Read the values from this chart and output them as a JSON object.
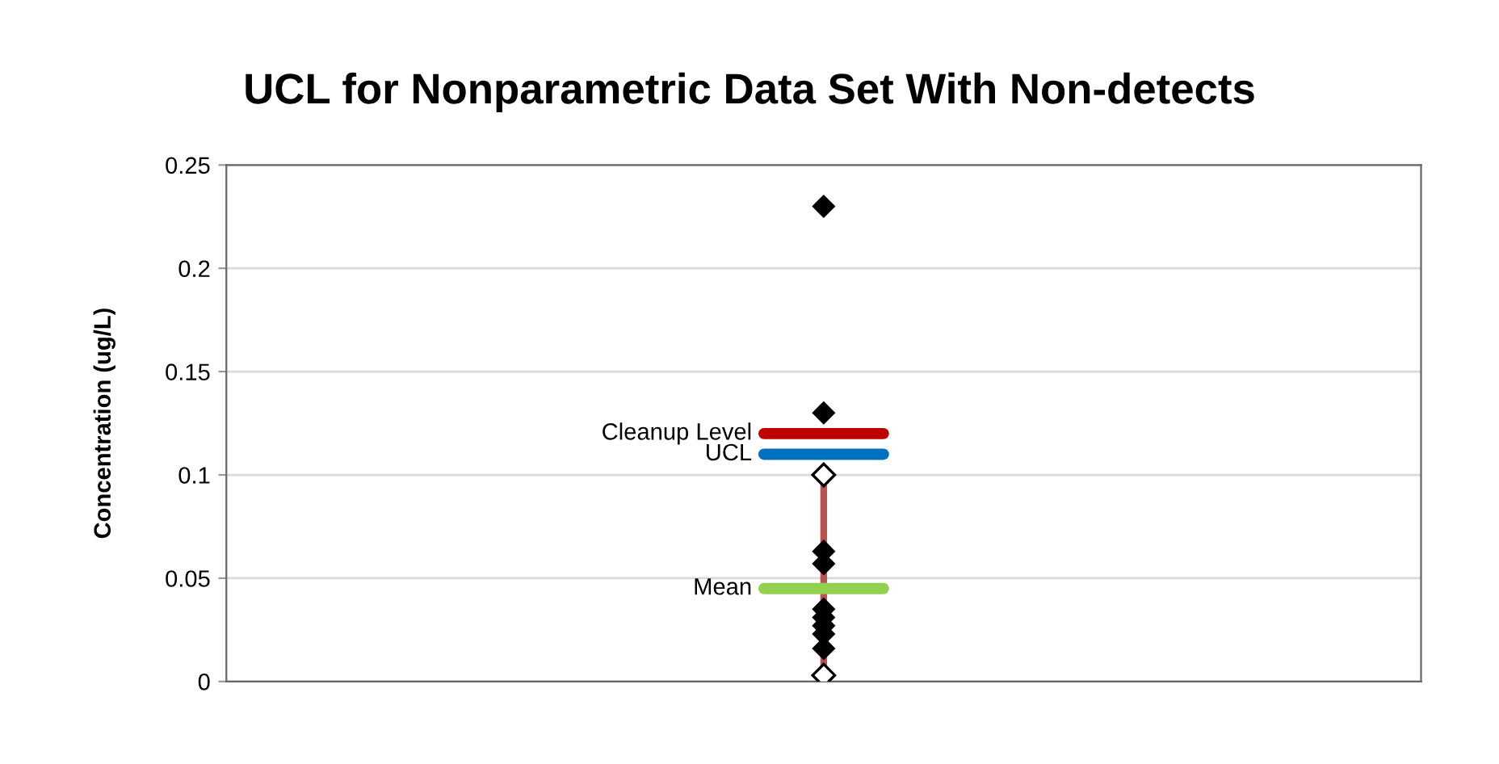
{
  "chart_data": {
    "type": "scatter",
    "title": "UCL for Nonparametric Data Set With Non-detects",
    "ylabel": "Concentration (ug/L)",
    "categories": [
      null
    ],
    "series": [
      {
        "type": "line",
        "color": "#b85450",
        "marker": "diamond",
        "x": [
          null,
          null
        ],
        "values": [
          0.003,
          0.1
        ]
      },
      {
        "color": "#000000",
        "marker": "diamond",
        "x": [
          null,
          null,
          null,
          null,
          null,
          null,
          null,
          null,
          null
        ],
        "values": [
          0.23,
          0.13,
          0.063,
          0.057,
          0.035,
          0.031,
          0.027,
          0.023,
          0.016
        ]
      }
    ],
    "ref_lines": [
      {
        "axis": "y",
        "value": 0.12,
        "label": "Cleanup Level",
        "color": "#c00000"
      },
      {
        "axis": "y",
        "value": 0.11,
        "label": "UCL",
        "color": "#0070c0"
      },
      {
        "axis": "y",
        "value": 0.045,
        "label": "Mean",
        "color": "#92d050"
      }
    ],
    "ylim": [
      0,
      0.25
    ],
    "yticks": [
      0,
      0.05,
      0.1,
      0.15,
      0.2,
      0.25
    ],
    "grid": "y",
    "tick_labels": "y"
  }
}
